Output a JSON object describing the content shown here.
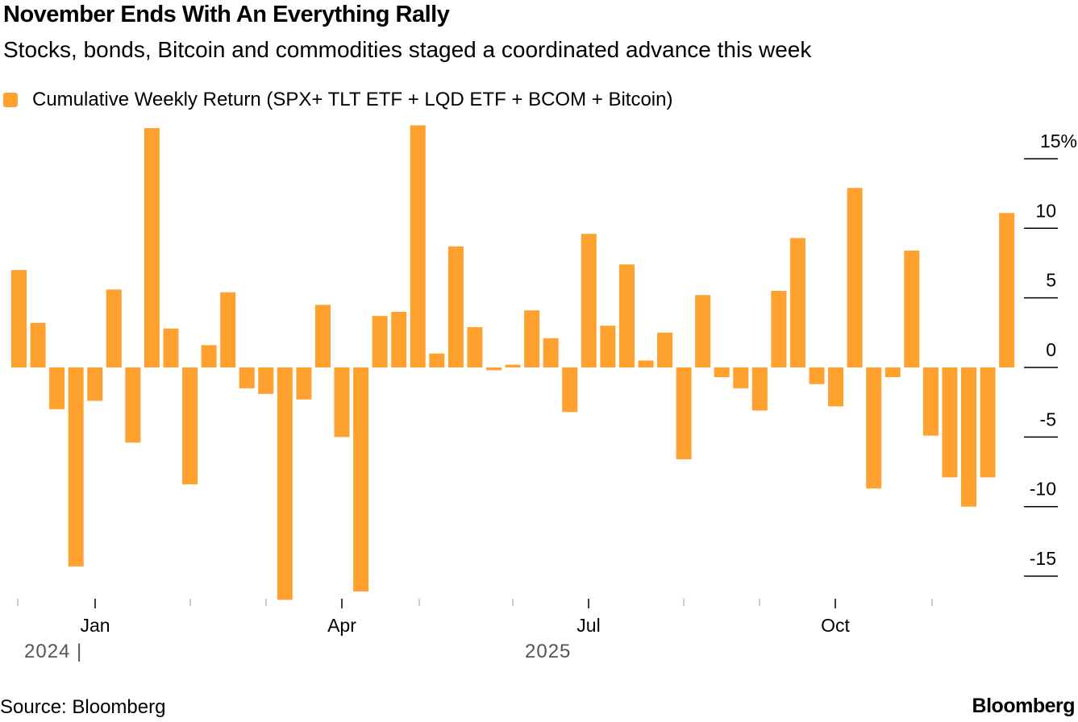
{
  "title": "November Ends With An Everything Rally",
  "subtitle": "Stocks, bonds, Bitcoin and commodities staged a coordinated advance this week",
  "source": "Source: Bloomberg",
  "brand": "Bloomberg",
  "chart_data": {
    "type": "bar",
    "legend": {
      "label": "Cumulative Weekly Return (SPX+ TLT ETF + LQD ETF + BCOM + Bitcoin)",
      "placement": "top-left"
    },
    "color": "#FFA12F",
    "frequency": "weekly",
    "values": [
      7.0,
      3.2,
      -3.0,
      -14.3,
      -2.4,
      5.6,
      -5.4,
      17.2,
      2.8,
      -8.4,
      1.6,
      5.4,
      -1.5,
      -1.9,
      -16.7,
      -2.3,
      4.5,
      -5.0,
      -16.1,
      3.7,
      4.0,
      17.4,
      1.0,
      8.7,
      2.9,
      -0.2,
      0.2,
      4.1,
      2.1,
      -3.2,
      9.6,
      3.0,
      7.4,
      0.5,
      2.5,
      -6.6,
      5.2,
      -0.7,
      -1.5,
      -3.1,
      5.5,
      9.3,
      -1.2,
      -2.8,
      12.9,
      -8.7,
      -0.7,
      8.4,
      -4.9,
      -7.9,
      -10.0,
      -7.9,
      11.1
    ],
    "y_axis": {
      "position": "right",
      "ticks": [
        15,
        10,
        5,
        0,
        -5,
        -10,
        -15
      ],
      "tick_labels": [
        "15%",
        "10",
        "5",
        "0",
        "-5",
        "-10",
        "-15"
      ],
      "ylim": [
        -17,
        17.5
      ]
    },
    "x_axis": {
      "tick_labels": [
        "Jan",
        "Apr",
        "Jul",
        "Oct"
      ],
      "year_labels": [
        "2024 |",
        "2025"
      ]
    },
    "grid": false
  }
}
